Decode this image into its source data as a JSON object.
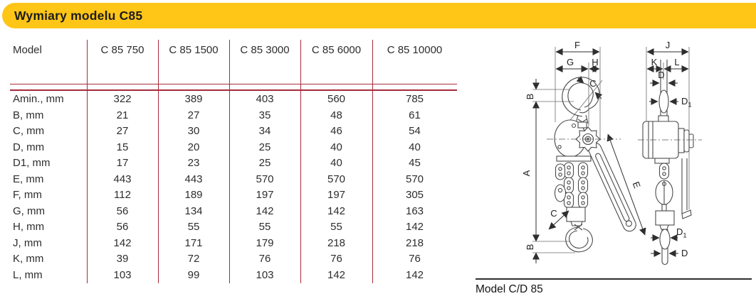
{
  "header": {
    "title": "Wymiary modelu C85"
  },
  "colors": {
    "accent_yellow": "#FFC517",
    "table_line_red": "#A62B3C",
    "drawing_line": "#4A4A4A",
    "text": "#2D2D2D"
  },
  "table": {
    "model_label": "Model",
    "columns": [
      "C 85 750",
      "C 85 1500",
      "C 85 3000",
      "C 85 6000",
      "C 85 10000"
    ],
    "rows": [
      {
        "label": "Amin., mm",
        "values": [
          322,
          389,
          403,
          560,
          785
        ]
      },
      {
        "label": "B, mm",
        "values": [
          21,
          27,
          35,
          48,
          61
        ]
      },
      {
        "label": "C, mm",
        "values": [
          27,
          30,
          34,
          46,
          54
        ]
      },
      {
        "label": "D, mm",
        "values": [
          15,
          20,
          25,
          40,
          40
        ]
      },
      {
        "label": "D1, mm",
        "values": [
          17,
          23,
          25,
          40,
          45
        ]
      },
      {
        "label": "E, mm",
        "values": [
          443,
          443,
          570,
          570,
          570
        ]
      },
      {
        "label": "F, mm",
        "values": [
          112,
          189,
          197,
          197,
          305
        ]
      },
      {
        "label": "G, mm",
        "values": [
          56,
          134,
          142,
          142,
          163
        ]
      },
      {
        "label": "H, mm",
        "values": [
          56,
          55,
          55,
          55,
          142
        ]
      },
      {
        "label": "J, mm",
        "values": [
          142,
          171,
          179,
          218,
          218
        ]
      },
      {
        "label": "K, mm",
        "values": [
          39,
          72,
          76,
          76,
          76
        ]
      },
      {
        "label": "L, mm",
        "values": [
          103,
          99,
          103,
          142,
          142
        ]
      }
    ]
  },
  "diagram": {
    "caption": "Model C/D 85",
    "labels": {
      "A": "A",
      "B": "B",
      "C": "C",
      "D": "D",
      "D1_main": "D",
      "D1_sub": "1",
      "E": "E",
      "F": "F",
      "G": "G",
      "H": "H",
      "J": "J",
      "K": "K",
      "L": "L"
    }
  }
}
